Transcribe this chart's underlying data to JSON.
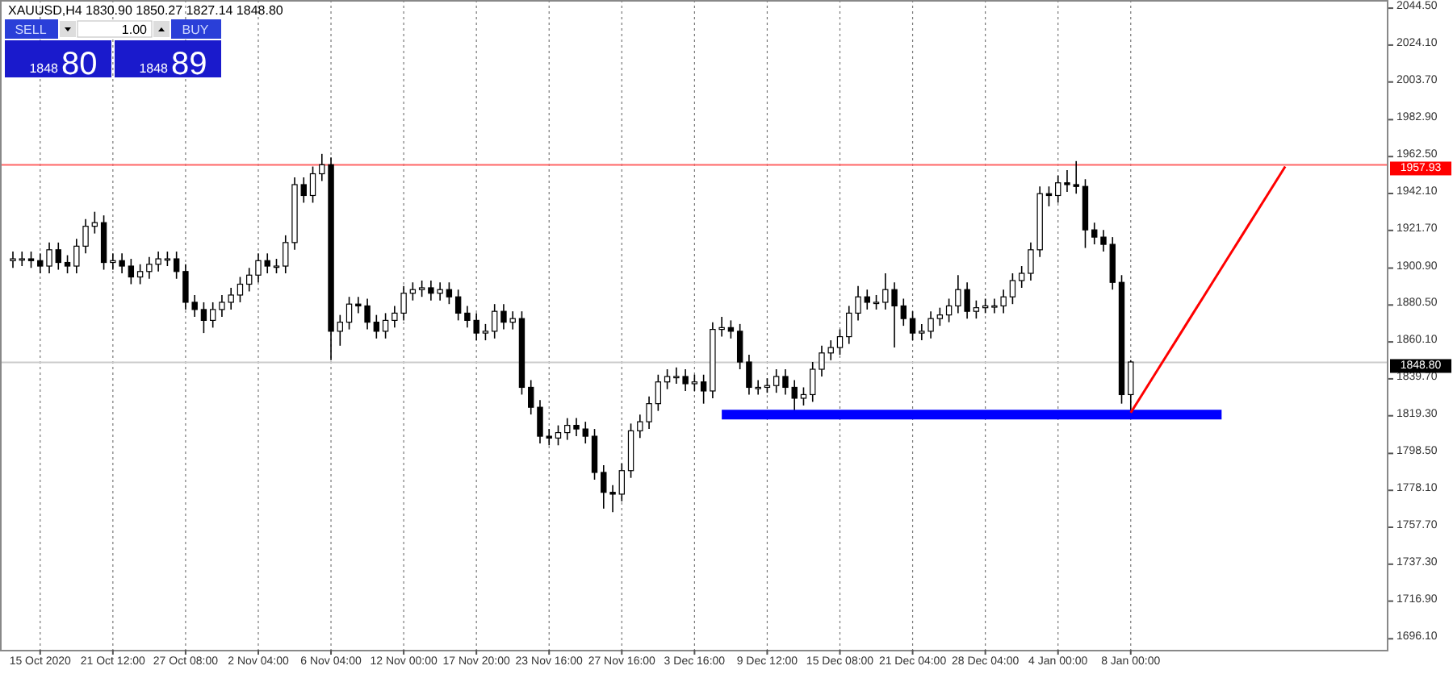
{
  "chart_data": {
    "type": "candlestick",
    "title": "XAUUSD,H4  1830.90 1850.27 1827.14 1848.80",
    "categories": [
      null,
      null,
      null,
      "15 Oct 2020",
      null,
      null,
      null,
      null,
      null,
      null,
      null,
      "21 Oct 12:00",
      null,
      null,
      null,
      null,
      null,
      null,
      null,
      "27 Oct 08:00",
      null,
      null,
      null,
      null,
      null,
      null,
      null,
      "2 Nov 04:00",
      null,
      null,
      null,
      null,
      null,
      null,
      null,
      "6 Nov 04:00",
      null,
      null,
      null,
      null,
      null,
      null,
      null,
      "12 Nov 00:00",
      null,
      null,
      null,
      null,
      null,
      null,
      null,
      "17 Nov 20:00",
      null,
      null,
      null,
      null,
      null,
      null,
      null,
      "23 Nov 16:00",
      null,
      null,
      null,
      null,
      null,
      null,
      null,
      "27 Nov 16:00",
      null,
      null,
      null,
      null,
      null,
      null,
      null,
      "3 Dec 16:00",
      null,
      null,
      null,
      null,
      null,
      null,
      null,
      "9 Dec 12:00",
      null,
      null,
      null,
      null,
      null,
      null,
      null,
      "15 Dec 08:00",
      null,
      null,
      null,
      null,
      null,
      null,
      null,
      "21 Dec 04:00",
      null,
      null,
      null,
      null,
      null,
      null,
      null,
      "28 Dec 04:00",
      null,
      null,
      null,
      null,
      null,
      null,
      null,
      "4 Jan 00:00",
      null,
      null,
      null,
      null,
      null,
      null,
      null,
      "8 Jan 00:00",
      null,
      null,
      null,
      null,
      null,
      null,
      null,
      null,
      null,
      null,
      null,
      null,
      null,
      null,
      null,
      null,
      null,
      null,
      null,
      null,
      null,
      null,
      null,
      null,
      null,
      null,
      null,
      null
    ],
    "ohlc": [
      [
        1905,
        1910,
        1901,
        1906
      ],
      [
        1906,
        1910,
        1902,
        1906
      ],
      [
        1906,
        1910,
        1901,
        1905
      ],
      [
        1905,
        1909,
        1898,
        1902
      ],
      [
        1902,
        1915,
        1898,
        1911
      ],
      [
        1911,
        1915,
        1900,
        1904
      ],
      [
        1904,
        1908,
        1898,
        1902
      ],
      [
        1902,
        1917,
        1898,
        1913
      ],
      [
        1913,
        1928,
        1909,
        1924
      ],
      [
        1924,
        1932,
        1920,
        1926
      ],
      [
        1926,
        1930,
        1900,
        1904
      ],
      [
        1904,
        1909,
        1900,
        1905
      ],
      [
        1905,
        1909,
        1898,
        1902
      ],
      [
        1902,
        1906,
        1892,
        1896
      ],
      [
        1896,
        1903,
        1892,
        1899
      ],
      [
        1899,
        1907,
        1895,
        1903
      ],
      [
        1903,
        1910,
        1899,
        1906
      ],
      [
        1906,
        1910,
        1902,
        1906
      ],
      [
        1906,
        1910,
        1895,
        1899
      ],
      [
        1899,
        1903,
        1878,
        1882
      ],
      [
        1882,
        1886,
        1874,
        1878
      ],
      [
        1878,
        1882,
        1865,
        1872
      ],
      [
        1872,
        1882,
        1868,
        1878
      ],
      [
        1878,
        1886,
        1874,
        1882
      ],
      [
        1882,
        1890,
        1878,
        1886
      ],
      [
        1886,
        1896,
        1882,
        1892
      ],
      [
        1892,
        1901,
        1888,
        1897
      ],
      [
        1897,
        1909,
        1893,
        1905
      ],
      [
        1905,
        1909,
        1898,
        1902
      ],
      [
        1902,
        1906,
        1898,
        1902
      ],
      [
        1902,
        1919,
        1898,
        1915
      ],
      [
        1915,
        1951,
        1911,
        1947
      ],
      [
        1947,
        1951,
        1937,
        1941
      ],
      [
        1941,
        1957,
        1937,
        1953
      ],
      [
        1953,
        1964,
        1949,
        1958
      ],
      [
        1958,
        1962,
        1850,
        1866
      ],
      [
        1866,
        1875,
        1858,
        1871
      ],
      [
        1871,
        1885,
        1867,
        1881
      ],
      [
        1881,
        1885,
        1876,
        1880
      ],
      [
        1880,
        1884,
        1867,
        1871
      ],
      [
        1871,
        1875,
        1862,
        1866
      ],
      [
        1866,
        1876,
        1862,
        1872
      ],
      [
        1872,
        1880,
        1868,
        1876
      ],
      [
        1876,
        1891,
        1872,
        1887
      ],
      [
        1887,
        1893,
        1883,
        1889
      ],
      [
        1889,
        1894,
        1885,
        1890
      ],
      [
        1890,
        1894,
        1883,
        1887
      ],
      [
        1887,
        1893,
        1883,
        1889
      ],
      [
        1889,
        1893,
        1881,
        1885
      ],
      [
        1885,
        1889,
        1872,
        1876
      ],
      [
        1876,
        1880,
        1868,
        1872
      ],
      [
        1872,
        1876,
        1861,
        1865
      ],
      [
        1865,
        1870,
        1861,
        1866
      ],
      [
        1866,
        1881,
        1862,
        1877
      ],
      [
        1877,
        1881,
        1867,
        1871
      ],
      [
        1871,
        1877,
        1867,
        1873
      ],
      [
        1873,
        1877,
        1831,
        1835
      ],
      [
        1835,
        1839,
        1820,
        1824
      ],
      [
        1824,
        1828,
        1804,
        1808
      ],
      [
        1808,
        1812,
        1803,
        1807
      ],
      [
        1807,
        1814,
        1803,
        1810
      ],
      [
        1810,
        1818,
        1806,
        1814
      ],
      [
        1814,
        1818,
        1808,
        1812
      ],
      [
        1812,
        1816,
        1804,
        1808
      ],
      [
        1808,
        1812,
        1784,
        1788
      ],
      [
        1788,
        1792,
        1768,
        1777
      ],
      [
        1777,
        1781,
        1766,
        1776
      ],
      [
        1776,
        1793,
        1772,
        1789
      ],
      [
        1789,
        1815,
        1785,
        1811
      ],
      [
        1811,
        1820,
        1807,
        1816
      ],
      [
        1816,
        1830,
        1812,
        1826
      ],
      [
        1826,
        1842,
        1822,
        1838
      ],
      [
        1838,
        1845,
        1834,
        1841
      ],
      [
        1841,
        1846,
        1837,
        1841
      ],
      [
        1841,
        1845,
        1833,
        1837
      ],
      [
        1837,
        1842,
        1833,
        1838
      ],
      [
        1838,
        1842,
        1826,
        1833
      ],
      [
        1833,
        1871,
        1829,
        1867
      ],
      [
        1867,
        1874,
        1863,
        1868
      ],
      [
        1868,
        1872,
        1862,
        1866
      ],
      [
        1866,
        1870,
        1845,
        1849
      ],
      [
        1849,
        1853,
        1831,
        1835
      ],
      [
        1835,
        1839,
        1831,
        1835
      ],
      [
        1835,
        1840,
        1832,
        1836
      ],
      [
        1836,
        1845,
        1832,
        1841
      ],
      [
        1841,
        1845,
        1831,
        1835
      ],
      [
        1835,
        1839,
        1822,
        1829
      ],
      [
        1829,
        1835,
        1825,
        1831
      ],
      [
        1831,
        1849,
        1827,
        1845
      ],
      [
        1845,
        1858,
        1841,
        1854
      ],
      [
        1854,
        1861,
        1850,
        1857
      ],
      [
        1857,
        1867,
        1853,
        1863
      ],
      [
        1863,
        1880,
        1859,
        1876
      ],
      [
        1876,
        1891,
        1872,
        1885
      ],
      [
        1885,
        1889,
        1878,
        1882
      ],
      [
        1882,
        1886,
        1878,
        1882
      ],
      [
        1882,
        1898,
        1878,
        1889
      ],
      [
        1889,
        1893,
        1857,
        1880
      ],
      [
        1880,
        1884,
        1869,
        1873
      ],
      [
        1873,
        1877,
        1861,
        1865
      ],
      [
        1865,
        1870,
        1861,
        1866
      ],
      [
        1866,
        1877,
        1862,
        1873
      ],
      [
        1873,
        1879,
        1869,
        1875
      ],
      [
        1875,
        1884,
        1871,
        1880
      ],
      [
        1880,
        1897,
        1876,
        1889
      ],
      [
        1889,
        1893,
        1873,
        1877
      ],
      [
        1877,
        1883,
        1873,
        1879
      ],
      [
        1879,
        1884,
        1876,
        1880
      ],
      [
        1880,
        1884,
        1876,
        1880
      ],
      [
        1880,
        1889,
        1876,
        1885
      ],
      [
        1885,
        1898,
        1881,
        1894
      ],
      [
        1894,
        1902,
        1890,
        1898
      ],
      [
        1898,
        1915,
        1894,
        1911
      ],
      [
        1911,
        1946,
        1907,
        1942
      ],
      [
        1942,
        1946,
        1935,
        1941
      ],
      [
        1941,
        1952,
        1937,
        1948
      ],
      [
        1948,
        1955,
        1943,
        1947
      ],
      [
        1947,
        1960,
        1942,
        1946
      ],
      [
        1946,
        1950,
        1912,
        1922
      ],
      [
        1922,
        1926,
        1914,
        1918
      ],
      [
        1918,
        1922,
        1910,
        1914
      ],
      [
        1914,
        1918,
        1889,
        1893
      ],
      [
        1893,
        1897,
        1826,
        1831
      ],
      [
        1831,
        1850,
        1821,
        1849
      ],
      null,
      null,
      null,
      null,
      null,
      null,
      null,
      null,
      null,
      null,
      null,
      null,
      null,
      null,
      null,
      null,
      null,
      null,
      null,
      null,
      null,
      null,
      null,
      null,
      null,
      null,
      null,
      null
    ],
    "series": [
      {
        "type": "line",
        "color": "#0000ff",
        "values": [
          null,
          null,
          null,
          null,
          null,
          null,
          null,
          null,
          null,
          null,
          null,
          null,
          null,
          null,
          null,
          null,
          null,
          null,
          null,
          null,
          null,
          null,
          null,
          null,
          null,
          null,
          null,
          null,
          null,
          null,
          null,
          null,
          null,
          null,
          null,
          null,
          null,
          null,
          null,
          null,
          null,
          null,
          null,
          null,
          null,
          null,
          null,
          null,
          null,
          null,
          null,
          null,
          null,
          null,
          null,
          null,
          null,
          null,
          null,
          null,
          null,
          null,
          null,
          null,
          null,
          null,
          null,
          null,
          null,
          null,
          null,
          null,
          null,
          null,
          null,
          null,
          null,
          null,
          1820,
          1820,
          1820,
          1820,
          1820,
          1820,
          1820,
          1820,
          1820,
          1820,
          1820,
          1820,
          1820,
          1820,
          1820,
          1820,
          1820,
          1820,
          1820,
          1820,
          1820,
          1820,
          1820,
          1820,
          1820,
          1820,
          1820,
          1820,
          1820,
          1820,
          1820,
          1820,
          1820,
          1820,
          1820,
          1820,
          1820,
          1820,
          1820,
          1820,
          1820,
          1820,
          1820,
          1820,
          1820,
          1820,
          1820,
          1820,
          1820,
          1820,
          1820,
          1820,
          1820,
          1820,
          1820,
          1820,
          null,
          null,
          null,
          null,
          null,
          null,
          null,
          null,
          null,
          null,
          null,
          null,
          null,
          null,
          null,
          null,
          null,
          null
        ]
      },
      {
        "type": "line",
        "color": "#ff0000",
        "values": [
          null,
          null,
          null,
          null,
          null,
          null,
          null,
          null,
          null,
          null,
          null,
          null,
          null,
          null,
          null,
          null,
          null,
          null,
          null,
          null,
          null,
          null,
          null,
          null,
          null,
          null,
          null,
          null,
          null,
          null,
          null,
          null,
          null,
          null,
          null,
          null,
          null,
          null,
          null,
          null,
          null,
          null,
          null,
          null,
          null,
          null,
          null,
          null,
          null,
          null,
          null,
          null,
          null,
          null,
          null,
          null,
          null,
          null,
          null,
          null,
          null,
          null,
          null,
          null,
          null,
          null,
          null,
          null,
          null,
          null,
          null,
          null,
          null,
          null,
          null,
          null,
          null,
          null,
          null,
          null,
          null,
          null,
          null,
          null,
          null,
          null,
          null,
          null,
          null,
          null,
          null,
          null,
          null,
          null,
          null,
          null,
          null,
          null,
          null,
          null,
          null,
          null,
          null,
          null,
          null,
          null,
          null,
          null,
          null,
          null,
          null,
          null,
          null,
          null,
          null,
          null,
          null,
          null,
          null,
          null,
          null,
          null,
          null,
          1821,
          1829,
          1837,
          1845,
          1853,
          1861,
          1869,
          1877,
          1885,
          1893,
          1901,
          1909,
          1917,
          1925,
          1933,
          1941,
          1949,
          1957,
          null,
          null,
          null,
          null,
          null,
          null,
          null,
          null,
          null,
          null,
          null
        ]
      }
    ],
    "ylim": [
      1690,
      2049
    ],
    "yticks": [
      {
        "value": 2044.5,
        "label": "2044.50"
      },
      {
        "value": 2024.1,
        "label": "2024.10"
      },
      {
        "value": 2003.7,
        "label": "2003.70"
      },
      {
        "value": 1982.9,
        "label": "1982.90"
      },
      {
        "value": 1962.5,
        "label": "1962.50"
      },
      {
        "value": 1942.1,
        "label": "1942.10"
      },
      {
        "value": 1921.7,
        "label": "1921.70"
      },
      {
        "value": 1900.9,
        "label": "1900.90"
      },
      {
        "value": 1880.5,
        "label": "1880.50"
      },
      {
        "value": 1860.1,
        "label": "1860.10"
      },
      {
        "value": 1839.7,
        "label": "1839.70"
      },
      {
        "value": 1819.3,
        "label": "1819.30"
      },
      {
        "value": 1798.5,
        "label": "1798.50"
      },
      {
        "value": 1778.1,
        "label": "1778.10"
      },
      {
        "value": 1757.7,
        "label": "1757.70"
      },
      {
        "value": 1737.3,
        "label": "1737.30"
      },
      {
        "value": 1716.9,
        "label": "1716.90"
      },
      {
        "value": 1696.1,
        "label": "1696.10"
      }
    ],
    "ref_lines": [
      {
        "axis": "y",
        "value": 1957.93,
        "label": "1957.93",
        "color": "#ff6666"
      },
      {
        "axis": "y",
        "value": 1848.8,
        "label": "1848.80",
        "color": "#cccccc"
      }
    ],
    "grid": "x",
    "annotations": [
      "SELL",
      "1.00",
      "BUY",
      "1848",
      "80",
      "1848",
      "89"
    ]
  }
}
